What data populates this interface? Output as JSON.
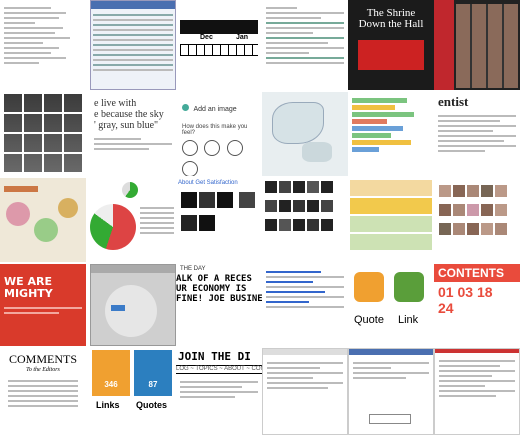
{
  "tiles": {
    "t1": {
      "label": ""
    },
    "t2": {
      "label": ""
    },
    "t3": {
      "months": [
        "Dec",
        "Jan"
      ]
    },
    "t4": {
      "label": ""
    },
    "t5": {
      "label": ""
    },
    "t6": {
      "title": "The Shrine Down the Hall"
    },
    "t7": {
      "label": ""
    },
    "t8": {
      "label": ""
    },
    "t9": {
      "line1": "e live with",
      "line2": "e because the sky",
      "line3": "' gray, sun blue\""
    },
    "t10": {
      "add_image": "Add an image",
      "question": "How does this make you feel?"
    },
    "t13": {
      "label": "entist"
    },
    "t16": {
      "link": "About Get Satisfaction"
    },
    "t20": {
      "headline": "WE ARE MIGHTY"
    },
    "t22": {
      "day": "THE DAY",
      "headline1": "ALK OF A RECES",
      "headline2": "UR ECONOMY IS",
      "headline3": "FINE! JOE BUSINE"
    },
    "t25": {
      "quote": "Quote",
      "link": "Link"
    },
    "t26": {
      "title": "CONTENTS",
      "nums": [
        "01",
        "03",
        "18",
        "24"
      ]
    },
    "t27": {
      "title": "COMMENTS",
      "subtitle": "To the Editors"
    },
    "t28": {
      "n1": "346",
      "n2": "87",
      "label1": "Links",
      "label2": "Quotes"
    },
    "t29": {
      "banner": "JOIN THE DI",
      "nav": "LOG  ~  TOPICS  ~  ABOUT  ~  CONTAC"
    },
    "t30": {
      "label": ""
    }
  },
  "colors": {
    "red": "#d93a2b",
    "blue": "#2c7fbf",
    "green": "#5a9e3a",
    "orange": "#f0a030",
    "dark": "#1b1b1b"
  }
}
